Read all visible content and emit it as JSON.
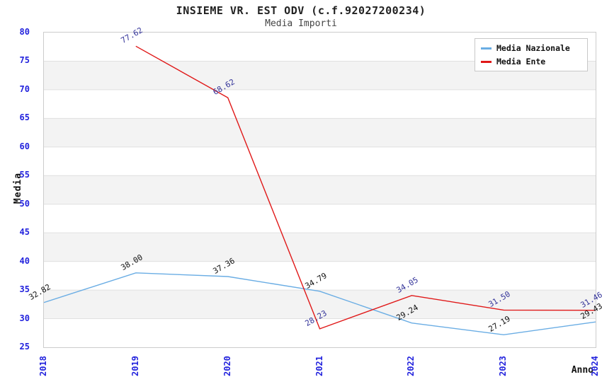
{
  "chart_data": {
    "type": "line",
    "title": "INSIEME VR. EST ODV (c.f.92027200234)",
    "subtitle": "Media Importi",
    "xlabel": "Anno",
    "ylabel": "Media",
    "x_ticks": [
      "2018",
      "2019",
      "2020",
      "2021",
      "2022",
      "2023",
      "2024"
    ],
    "x_range": [
      2018,
      2024
    ],
    "ylim": [
      25,
      80
    ],
    "ytick_step": 5,
    "grid": "horizontal-bands",
    "legend_position": "top-right",
    "series": [
      {
        "name": "Media Nazionale",
        "color": "#6aade4",
        "label_color": "#111111",
        "x": [
          2018,
          2019,
          2020,
          2021,
          2022,
          2023,
          2024
        ],
        "values": [
          32.82,
          38.0,
          37.36,
          34.79,
          29.24,
          27.19,
          29.43
        ]
      },
      {
        "name": "Media Ente",
        "color": "#e01818",
        "label_color": "#333399",
        "x": [
          2019,
          2020,
          2021,
          2022,
          2023,
          2024
        ],
        "values": [
          77.62,
          68.62,
          28.23,
          34.05,
          31.5,
          31.46
        ]
      }
    ],
    "colors": {
      "axis_tick_text": "#2222dd",
      "band_fill": "#f3f3f3",
      "gridline": "#e0e0e0",
      "plot_border": "#cccccc",
      "title_text": "#222222",
      "subtitle_text": "#444444"
    }
  }
}
